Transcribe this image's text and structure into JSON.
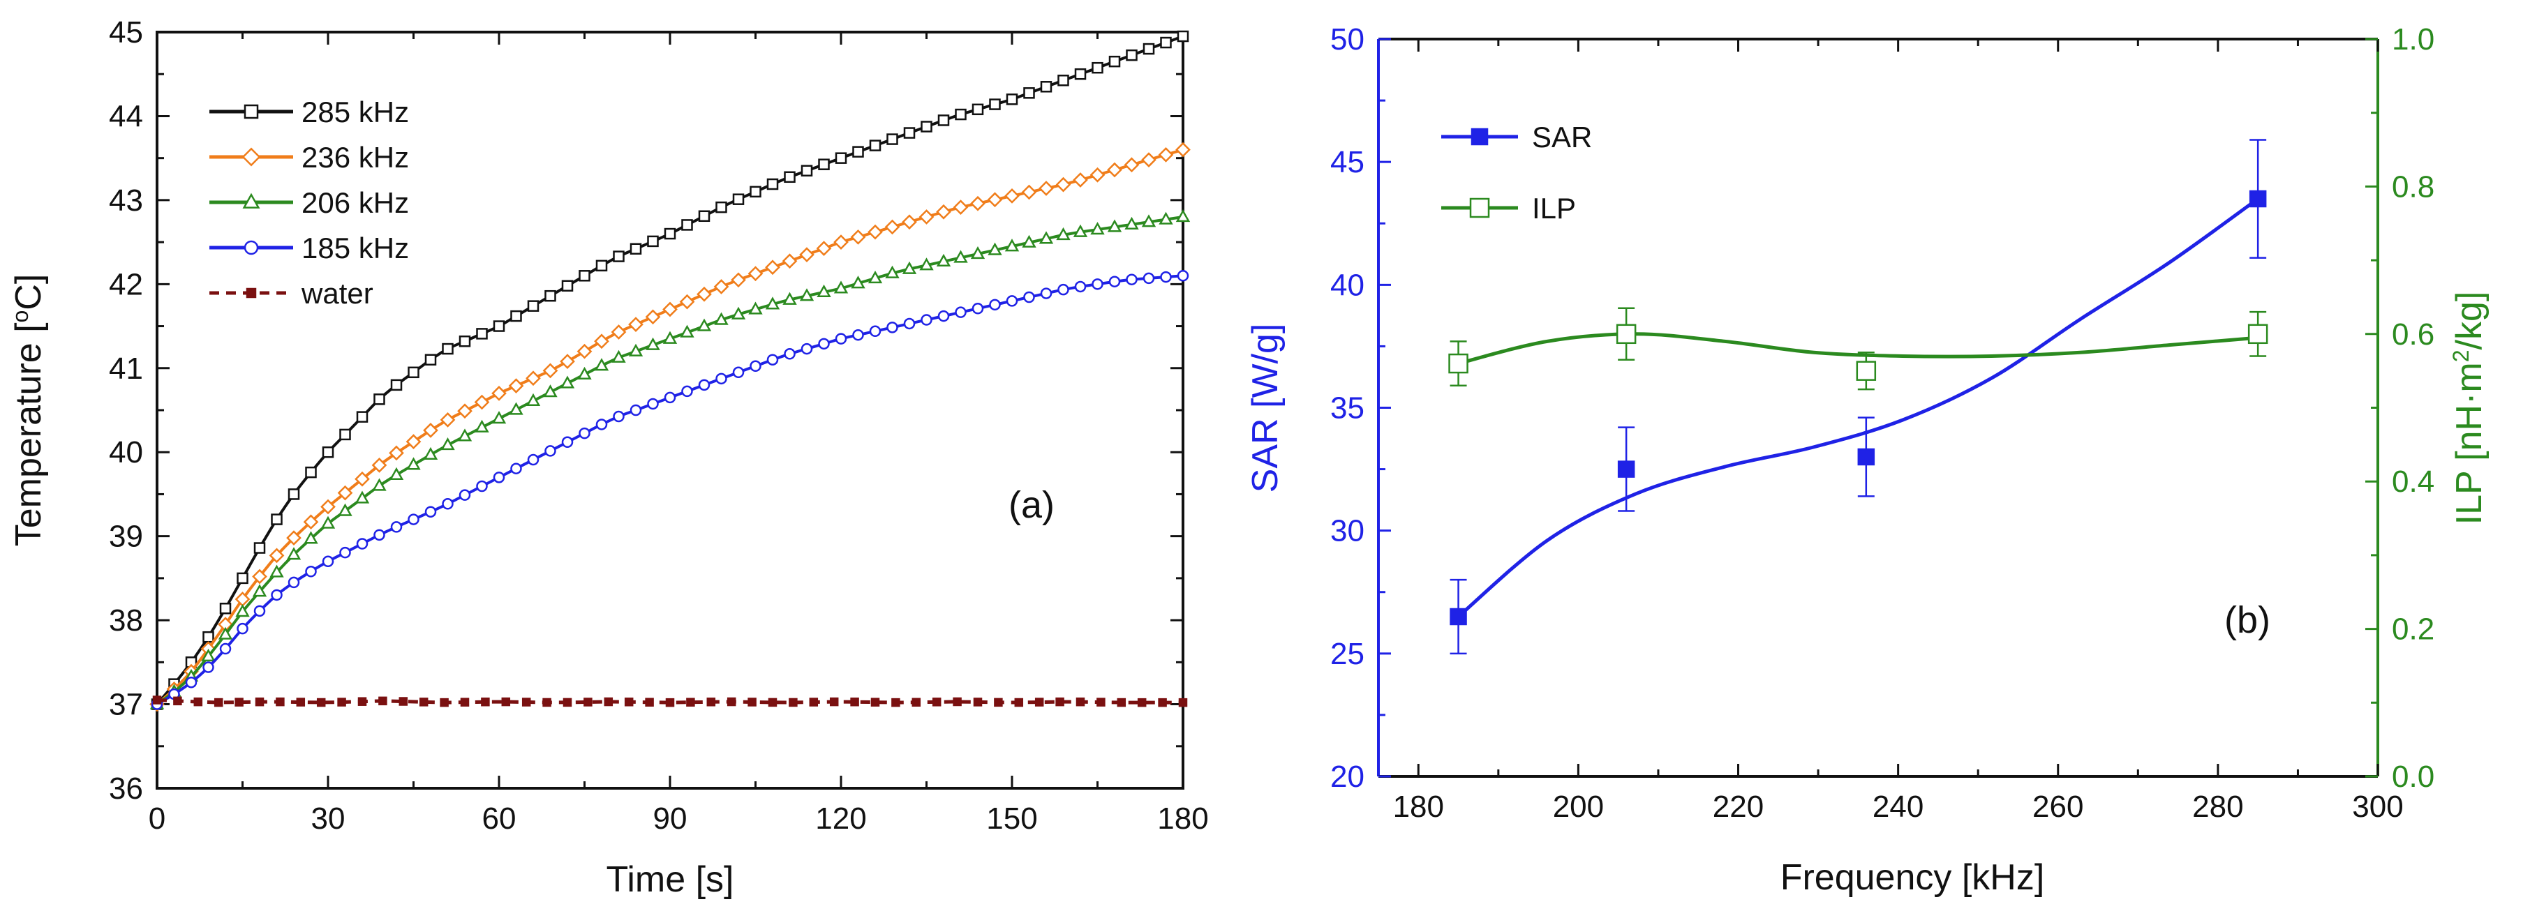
{
  "chart_data": [
    {
      "panel": "a",
      "type": "scatter",
      "panel_label": "(a)",
      "xlabel": "Time [s]",
      "ylabel_text": "Temperature [",
      "ylabel_sup": "o",
      "ylabel_tail": "C]",
      "xlim": [
        0,
        180
      ],
      "ylim": [
        36,
        45
      ],
      "xticks": [
        0,
        30,
        60,
        90,
        120,
        150,
        180
      ],
      "yticks": [
        36,
        37,
        38,
        39,
        40,
        41,
        42,
        43,
        44,
        45
      ],
      "legend_position": "top-left",
      "series": [
        {
          "name": "285 kHz",
          "color": "#111111",
          "marker": "square-open",
          "x": [
            0,
            5,
            10,
            15,
            20,
            25,
            30,
            40,
            50,
            60,
            70,
            80,
            90,
            100,
            110,
            120,
            130,
            140,
            150,
            160,
            170,
            180
          ],
          "y": [
            37.0,
            37.4,
            37.9,
            38.5,
            39.1,
            39.6,
            40.0,
            40.7,
            41.2,
            41.5,
            41.9,
            42.3,
            42.6,
            42.95,
            43.25,
            43.5,
            43.75,
            44.0,
            44.2,
            44.45,
            44.7,
            44.95
          ]
        },
        {
          "name": "236 kHz",
          "color": "#f07d1a",
          "marker": "diamond-open",
          "x": [
            0,
            5,
            10,
            15,
            20,
            25,
            30,
            40,
            50,
            60,
            70,
            80,
            90,
            100,
            110,
            120,
            130,
            140,
            150,
            160,
            170,
            180
          ],
          "y": [
            37.0,
            37.3,
            37.75,
            38.25,
            38.7,
            39.05,
            39.35,
            39.9,
            40.35,
            40.7,
            41.0,
            41.4,
            41.7,
            42.0,
            42.25,
            42.5,
            42.7,
            42.9,
            43.05,
            43.2,
            43.4,
            43.6
          ]
        },
        {
          "name": "206 kHz",
          "color": "#2b8a1f",
          "marker": "triangle-open",
          "x": [
            0,
            5,
            10,
            15,
            20,
            25,
            30,
            40,
            50,
            60,
            70,
            80,
            90,
            100,
            110,
            120,
            130,
            140,
            150,
            160,
            170,
            180
          ],
          "y": [
            37.0,
            37.25,
            37.65,
            38.1,
            38.5,
            38.85,
            39.15,
            39.65,
            40.05,
            40.4,
            40.75,
            41.1,
            41.35,
            41.6,
            41.8,
            41.95,
            42.15,
            42.3,
            42.45,
            42.6,
            42.7,
            42.8
          ]
        },
        {
          "name": "185 kHz",
          "color": "#1f22e6",
          "marker": "circle-open",
          "x": [
            0,
            5,
            10,
            15,
            20,
            25,
            30,
            40,
            50,
            60,
            70,
            80,
            90,
            100,
            110,
            120,
            130,
            140,
            150,
            160,
            170,
            180
          ],
          "y": [
            37.0,
            37.2,
            37.5,
            37.9,
            38.25,
            38.5,
            38.7,
            39.05,
            39.35,
            39.7,
            40.05,
            40.4,
            40.65,
            40.9,
            41.15,
            41.35,
            41.5,
            41.65,
            41.8,
            41.95,
            42.05,
            42.1
          ]
        },
        {
          "name": "water",
          "color": "#7a1010",
          "marker": "square-filled",
          "x": [
            0,
            10,
            20,
            30,
            40,
            50,
            60,
            70,
            80,
            90,
            100,
            110,
            120,
            130,
            140,
            150,
            160,
            170,
            180
          ],
          "y": [
            37.05,
            37.02,
            37.03,
            37.02,
            37.04,
            37.02,
            37.03,
            37.02,
            37.03,
            37.02,
            37.03,
            37.02,
            37.03,
            37.02,
            37.03,
            37.02,
            37.03,
            37.02,
            37.02
          ]
        }
      ]
    },
    {
      "panel": "b",
      "type": "scatter",
      "panel_label": "(b)",
      "xlabel": "Frequency [kHz]",
      "ylabel": "SAR [W/g]",
      "y2label_text": "ILP [nH·m",
      "y2label_sup": "2",
      "y2label_tail": "/kg]",
      "xlim": [
        175,
        300
      ],
      "ylim": [
        20,
        50
      ],
      "y2lim": [
        0.0,
        1.0
      ],
      "xticks": [
        180,
        200,
        220,
        240,
        260,
        280,
        300
      ],
      "yticks": [
        20,
        25,
        30,
        35,
        40,
        45,
        50
      ],
      "y2ticks": [
        "0.0",
        "0.2",
        "0.4",
        "0.6",
        "0.8",
        "1.0"
      ],
      "legend_position": "top-left",
      "series": [
        {
          "name": "SAR",
          "axis": "left",
          "color": "#1f22e6",
          "marker": "square-filled",
          "x": [
            185,
            206,
            236,
            285
          ],
          "y": [
            26.5,
            32.5,
            33.0,
            43.5
          ],
          "err": [
            1.5,
            1.7,
            1.6,
            2.4
          ],
          "fit_y": [
            26.5,
            29.6,
            31.5,
            32.6,
            33.4,
            34.5,
            36.2,
            38.6,
            40.9,
            43.5
          ]
        },
        {
          "name": "ILP",
          "axis": "right",
          "color": "#2b8a1f",
          "marker": "square-open",
          "x": [
            185,
            206,
            236,
            285
          ],
          "y": [
            0.56,
            0.6,
            0.55,
            0.6
          ],
          "err": [
            0.03,
            0.035,
            0.025,
            0.03
          ],
          "fit_y": [
            0.56,
            0.59,
            0.6,
            0.59,
            0.575,
            0.57,
            0.57,
            0.575,
            0.585,
            0.595
          ]
        }
      ]
    }
  ]
}
